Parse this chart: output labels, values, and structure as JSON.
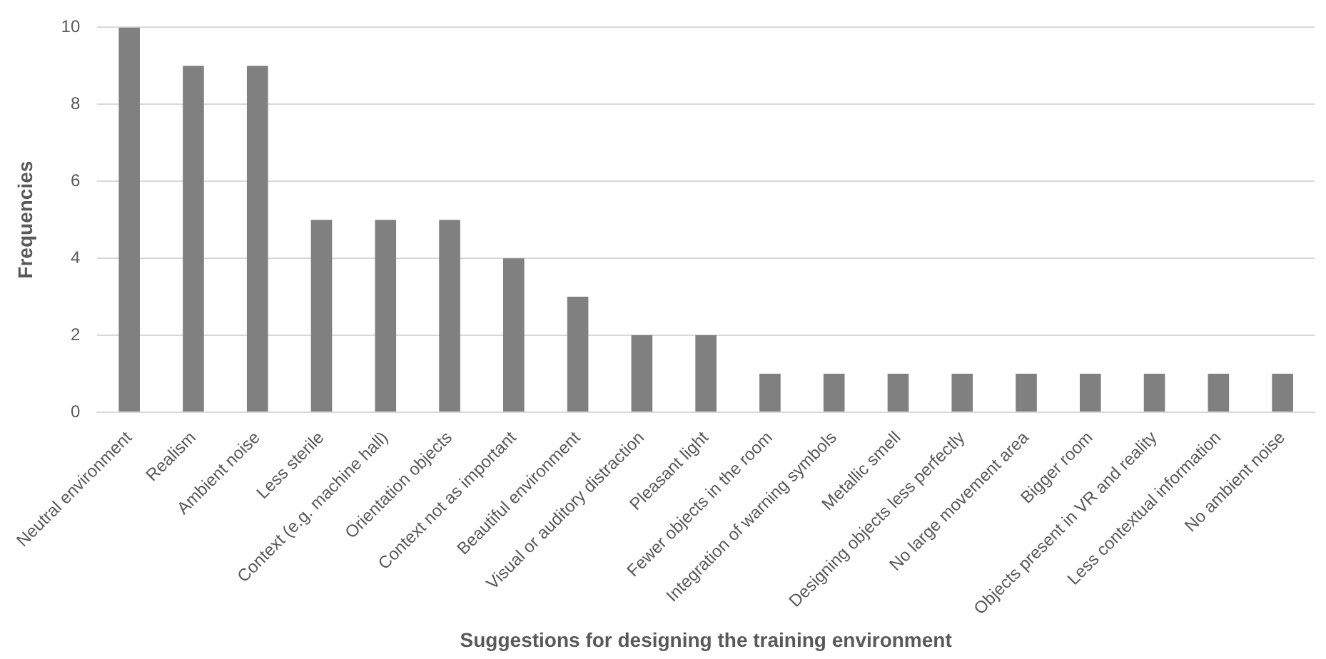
{
  "chart_data": {
    "type": "bar",
    "xlabel": "Suggestions for designing the training environment",
    "ylabel": "Frequencies",
    "categories": [
      "Neutral environment",
      "Realism",
      "Ambient noise",
      "Less sterile",
      "Context (e.g. machine hall)",
      "Orientation objects",
      "Context not as important",
      "Beautiful environment",
      "Visual or auditory distraction",
      "Pleasant light",
      "Fewer objects in the room",
      "Integration of warning symbols",
      "Metallic smell",
      "Designing objects less perfectly",
      "No large movement area",
      "Bigger room",
      "Objects present in VR and reality",
      "Less contextual information",
      "No ambient noise"
    ],
    "values": [
      10,
      9,
      9,
      5,
      5,
      5,
      4,
      3,
      2,
      2,
      1,
      1,
      1,
      1,
      1,
      1,
      1,
      1,
      1
    ],
    "color": "#808080",
    "ylim": [
      0,
      10
    ],
    "yticks": [
      0,
      2,
      4,
      6,
      8,
      10
    ],
    "grid": "y",
    "legend": false
  }
}
